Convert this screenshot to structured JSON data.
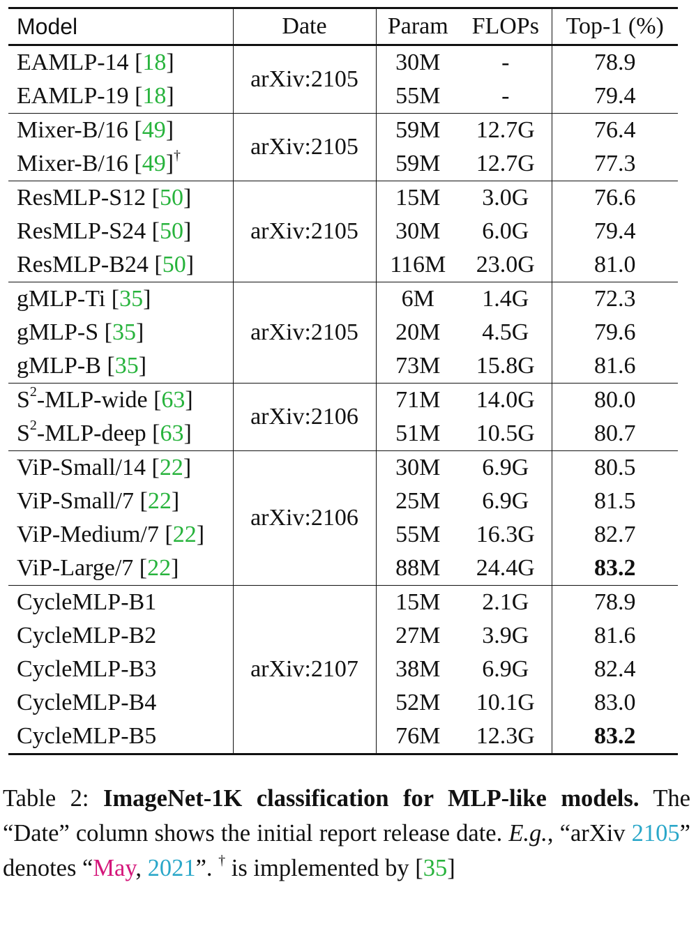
{
  "table": {
    "headers": {
      "model": "Model",
      "date": "Date",
      "param": "Param",
      "flops": "FLOPs",
      "top1": "Top-1 (%)"
    },
    "groups": [
      {
        "date": "arXiv:2105",
        "rows": [
          {
            "name": "EAMLP-14",
            "cite": "18",
            "param": "30M",
            "flops": "-",
            "top1": "78.9"
          },
          {
            "name": "EAMLP-19",
            "cite": "18",
            "param": "55M",
            "flops": "-",
            "top1": "79.4"
          }
        ]
      },
      {
        "date": "arXiv:2105",
        "rows": [
          {
            "name": "Mixer-B/16",
            "cite": "49",
            "param": "59M",
            "flops": "12.7G",
            "top1": "76.4"
          },
          {
            "name": "Mixer-B/16",
            "cite": "49",
            "mark": "†",
            "param": "59M",
            "flops": "12.7G",
            "top1": "77.3"
          }
        ]
      },
      {
        "date": "arXiv:2105",
        "rows": [
          {
            "name": "ResMLP-S12",
            "cite": "50",
            "param": "15M",
            "flops": "3.0G",
            "top1": "76.6"
          },
          {
            "name": "ResMLP-S24",
            "cite": "50",
            "param": "30M",
            "flops": "6.0G",
            "top1": "79.4"
          },
          {
            "name": "ResMLP-B24",
            "cite": "50",
            "param": "116M",
            "flops": "23.0G",
            "top1": "81.0"
          }
        ]
      },
      {
        "date": "arXiv:2105",
        "rows": [
          {
            "name": "gMLP-Ti",
            "cite": "35",
            "param": "6M",
            "flops": "1.4G",
            "top1": "72.3"
          },
          {
            "name": "gMLP-S",
            "cite": "35",
            "param": "20M",
            "flops": "4.5G",
            "top1": "79.6"
          },
          {
            "name": "gMLP-B",
            "cite": "35",
            "param": "73M",
            "flops": "15.8G",
            "top1": "81.6"
          }
        ]
      },
      {
        "date": "arXiv:2106",
        "rows": [
          {
            "name": "S",
            "sup": "2",
            "name_rest": "-MLP-wide",
            "cite": "63",
            "param": "71M",
            "flops": "14.0G",
            "top1": "80.0"
          },
          {
            "name": "S",
            "sup": "2",
            "name_rest": "-MLP-deep",
            "cite": "63",
            "param": "51M",
            "flops": "10.5G",
            "top1": "80.7"
          }
        ]
      },
      {
        "date": "arXiv:2106",
        "rows": [
          {
            "name": "ViP-Small/14",
            "cite": "22",
            "param": "30M",
            "flops": "6.9G",
            "top1": "80.5"
          },
          {
            "name": "ViP-Small/7",
            "cite": "22",
            "param": "25M",
            "flops": "6.9G",
            "top1": "81.5"
          },
          {
            "name": "ViP-Medium/7",
            "cite": "22",
            "param": "55M",
            "flops": "16.3G",
            "top1": "82.7"
          },
          {
            "name": "ViP-Large/7",
            "cite": "22",
            "param": "88M",
            "flops": "24.4G",
            "top1": "83.2",
            "bold": true
          }
        ]
      },
      {
        "date": "arXiv:2107",
        "rows": [
          {
            "name": "CycleMLP-B1",
            "param": "15M",
            "flops": "2.1G",
            "top1": "78.9"
          },
          {
            "name": "CycleMLP-B2",
            "param": "27M",
            "flops": "3.9G",
            "top1": "81.6"
          },
          {
            "name": "CycleMLP-B3",
            "param": "38M",
            "flops": "6.9G",
            "top1": "82.4"
          },
          {
            "name": "CycleMLP-B4",
            "param": "52M",
            "flops": "10.1G",
            "top1": "83.0"
          },
          {
            "name": "CycleMLP-B5",
            "param": "76M",
            "flops": "12.3G",
            "top1": "83.2",
            "bold": true
          }
        ]
      }
    ]
  },
  "caption": {
    "label": "Table 2:",
    "bold_title": "ImageNet-1K classification for MLP-like models.",
    "text1": "The “Date” column shows the initial report release date.",
    "eg": "E.g.",
    "text2": ", “arXiv ",
    "arxiv_num": "2105",
    "text3": "” denotes “",
    "month": "May",
    "text4": ", ",
    "year": "2021",
    "text5": "”.",
    "dagger": "†",
    "text6": " is implemented by [",
    "cite": "35",
    "text7": "]"
  },
  "colors": {
    "cite_green": "#27b33c",
    "cyan": "#2aa7c9",
    "magenta": "#d4167a"
  }
}
